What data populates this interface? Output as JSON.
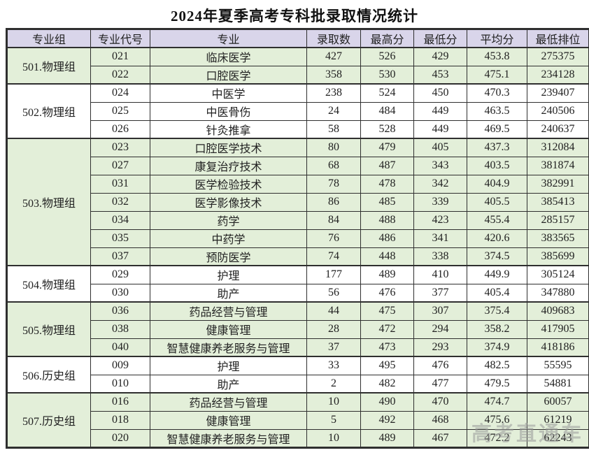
{
  "title": "2024年夏季高考专科批录取情况统计",
  "watermark": "高考直通车",
  "colors": {
    "header_bg": "#d9d5ea",
    "group_green": "#e3efd9",
    "row_white": "#ffffff",
    "border": "#2f2f2f",
    "text": "#222222",
    "watermark": "#9a9a9a"
  },
  "table": {
    "headers": [
      "专业组",
      "专业代号",
      "专业",
      "录取数",
      "最高分",
      "最低分",
      "平均分",
      "最低排位"
    ],
    "groups": [
      {
        "name": "501.物理组",
        "shade": "green",
        "rows": [
          {
            "code": "021",
            "major": "临床医学",
            "admitted": "427",
            "max": "526",
            "min": "429",
            "avg": "453.8",
            "rank": "275375"
          },
          {
            "code": "022",
            "major": "口腔医学",
            "admitted": "358",
            "max": "530",
            "min": "453",
            "avg": "475.1",
            "rank": "234128"
          }
        ]
      },
      {
        "name": "502.物理组",
        "shade": "white",
        "rows": [
          {
            "code": "024",
            "major": "中医学",
            "admitted": "238",
            "max": "524",
            "min": "450",
            "avg": "470.3",
            "rank": "239407"
          },
          {
            "code": "025",
            "major": "中医骨伤",
            "admitted": "24",
            "max": "484",
            "min": "449",
            "avg": "463.5",
            "rank": "240506"
          },
          {
            "code": "026",
            "major": "针灸推拿",
            "admitted": "58",
            "max": "528",
            "min": "449",
            "avg": "469.5",
            "rank": "240637"
          }
        ]
      },
      {
        "name": "503.物理组",
        "shade": "green",
        "rows": [
          {
            "code": "023",
            "major": "口腔医学技术",
            "admitted": "80",
            "max": "479",
            "min": "405",
            "avg": "437.3",
            "rank": "312084"
          },
          {
            "code": "027",
            "major": "康复治疗技术",
            "admitted": "68",
            "max": "487",
            "min": "343",
            "avg": "403.5",
            "rank": "381874"
          },
          {
            "code": "031",
            "major": "医学检验技术",
            "admitted": "78",
            "max": "478",
            "min": "342",
            "avg": "404.9",
            "rank": "382991"
          },
          {
            "code": "032",
            "major": "医学影像技术",
            "admitted": "86",
            "max": "485",
            "min": "339",
            "avg": "405.5",
            "rank": "385413"
          },
          {
            "code": "034",
            "major": "药学",
            "admitted": "84",
            "max": "488",
            "min": "423",
            "avg": "455.4",
            "rank": "285157"
          },
          {
            "code": "035",
            "major": "中药学",
            "admitted": "76",
            "max": "486",
            "min": "341",
            "avg": "420.6",
            "rank": "383565"
          },
          {
            "code": "037",
            "major": "预防医学",
            "admitted": "74",
            "max": "448",
            "min": "338",
            "avg": "374.5",
            "rank": "385699"
          }
        ]
      },
      {
        "name": "504.物理组",
        "shade": "white",
        "rows": [
          {
            "code": "029",
            "major": "护理",
            "admitted": "177",
            "max": "489",
            "min": "410",
            "avg": "449.9",
            "rank": "305124"
          },
          {
            "code": "030",
            "major": "助产",
            "admitted": "56",
            "max": "476",
            "min": "377",
            "avg": "405.4",
            "rank": "347880"
          }
        ]
      },
      {
        "name": "505.物理组",
        "shade": "green",
        "rows": [
          {
            "code": "036",
            "major": "药品经营与管理",
            "admitted": "44",
            "max": "475",
            "min": "307",
            "avg": "375.4",
            "rank": "409683"
          },
          {
            "code": "038",
            "major": "健康管理",
            "admitted": "28",
            "max": "472",
            "min": "294",
            "avg": "358.2",
            "rank": "417905"
          },
          {
            "code": "040",
            "major": "智慧健康养老服务与管理",
            "admitted": "37",
            "max": "473",
            "min": "293",
            "avg": "374.9",
            "rank": "418186"
          }
        ]
      },
      {
        "name": "506.历史组",
        "shade": "white",
        "rows": [
          {
            "code": "009",
            "major": "护理",
            "admitted": "33",
            "max": "495",
            "min": "476",
            "avg": "482.5",
            "rank": "55595"
          },
          {
            "code": "010",
            "major": "助产",
            "admitted": "2",
            "max": "482",
            "min": "477",
            "avg": "479.5",
            "rank": "54881"
          }
        ]
      },
      {
        "name": "507.历史组",
        "shade": "green",
        "rows": [
          {
            "code": "016",
            "major": "药品经营与管理",
            "admitted": "10",
            "max": "490",
            "min": "470",
            "avg": "474.7",
            "rank": "60057"
          },
          {
            "code": "018",
            "major": "健康管理",
            "admitted": "5",
            "max": "492",
            "min": "468",
            "avg": "475.6",
            "rank": "61219"
          },
          {
            "code": "020",
            "major": "智慧健康养老服务与管理",
            "admitted": "10",
            "max": "489",
            "min": "467",
            "avg": "472.2",
            "rank": "62243"
          }
        ]
      }
    ]
  }
}
